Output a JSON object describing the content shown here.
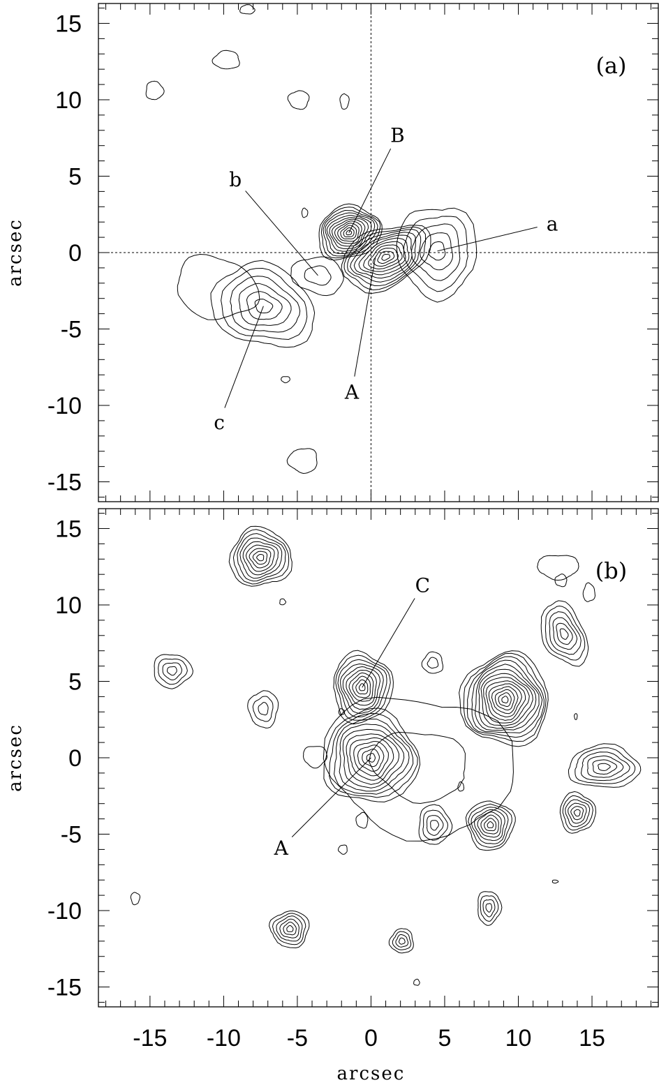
{
  "chart_data": [
    {
      "type": "contour",
      "panel_label": "(a)",
      "xlabel": "",
      "ylabel": "arcsec",
      "xlim": [
        -18.5,
        19.5
      ],
      "ylim": [
        -16.3,
        16.3
      ],
      "x_ticks": [
        -15,
        -10,
        -5,
        0,
        5,
        10,
        15
      ],
      "y_ticks": [
        15,
        10,
        5,
        0,
        -5,
        -10,
        -15
      ],
      "y_tick_labels": [
        "15",
        "10",
        "5",
        "0",
        "-5",
        "-10",
        "-15"
      ],
      "crosshair": {
        "x": 0,
        "y": 0
      },
      "annotations": [
        {
          "text": "A",
          "x": -1.3,
          "y": -9.1,
          "target": [
            0.3,
            -0.3
          ]
        },
        {
          "text": "B",
          "x": 1.8,
          "y": 7.7,
          "target": [
            -1.5,
            1.3
          ]
        },
        {
          "text": "a",
          "x": 12.3,
          "y": 1.9,
          "target": [
            4.5,
            0.1
          ]
        },
        {
          "text": "b",
          "x": -9.2,
          "y": 4.8,
          "target": [
            -3.6,
            -1.5
          ]
        },
        {
          "text": "c",
          "x": -10.3,
          "y": -11.1,
          "target": [
            -7.3,
            -3.5
          ]
        }
      ],
      "sources": [
        {
          "x": -1.5,
          "y": 1.3,
          "rx": 2.2,
          "ry": 1.7,
          "levels": 12,
          "rot": -20
        },
        {
          "x": 1.0,
          "y": -0.3,
          "rx": 3.2,
          "ry": 1.9,
          "levels": 11,
          "rot": -25
        },
        {
          "x": 4.5,
          "y": 0.1,
          "rx": 2.7,
          "ry": 3.0,
          "levels": 5,
          "rot": 0
        },
        {
          "x": -3.6,
          "y": -1.5,
          "rx": 1.8,
          "ry": 1.2,
          "levels": 2,
          "rot": 10
        },
        {
          "x": -7.3,
          "y": -3.5,
          "rx": 3.6,
          "ry": 2.6,
          "levels": 6,
          "rot": 20
        },
        {
          "x": -10.5,
          "y": -2.3,
          "rx": 2.8,
          "ry": 2.0,
          "levels": 1,
          "rot": 15
        },
        {
          "x": -4.9,
          "y": 10.0,
          "rx": 0.7,
          "ry": 0.6,
          "levels": 1,
          "rot": 0
        },
        {
          "x": -9.8,
          "y": 12.6,
          "rx": 0.9,
          "ry": 0.6,
          "levels": 1,
          "rot": 0
        },
        {
          "x": -14.7,
          "y": 10.6,
          "rx": 0.6,
          "ry": 0.6,
          "levels": 1,
          "rot": 0
        },
        {
          "x": -1.8,
          "y": 9.9,
          "rx": 0.3,
          "ry": 0.5,
          "levels": 1,
          "rot": 0
        },
        {
          "x": -4.6,
          "y": -13.6,
          "rx": 1.0,
          "ry": 0.8,
          "levels": 1,
          "rot": 0
        },
        {
          "x": -8.4,
          "y": 15.9,
          "rx": 0.5,
          "ry": 0.3,
          "levels": 1,
          "rot": 0
        },
        {
          "x": -4.5,
          "y": 2.6,
          "rx": 0.2,
          "ry": 0.3,
          "levels": 1,
          "rot": 0
        },
        {
          "x": -5.8,
          "y": -8.3,
          "rx": 0.3,
          "ry": 0.2,
          "levels": 1,
          "rot": 0
        }
      ]
    },
    {
      "type": "contour",
      "panel_label": "(b)",
      "xlabel": "arcsec",
      "ylabel": "arcsec",
      "xlim": [
        -18.5,
        19.5
      ],
      "ylim": [
        -16.3,
        16.3
      ],
      "x_ticks": [
        -15,
        -10,
        -5,
        0,
        5,
        10,
        15
      ],
      "x_tick_labels": [
        "-15",
        "-10",
        "-5",
        "0",
        "5",
        "10",
        "15"
      ],
      "y_ticks": [
        15,
        10,
        5,
        0,
        -5,
        -10,
        -15
      ],
      "y_tick_labels": [
        "15",
        "10",
        "5",
        "0",
        "-5",
        "-10",
        "-15"
      ],
      "annotations": [
        {
          "text": "A",
          "x": -6.1,
          "y": -5.9,
          "target": [
            0.0,
            0.0
          ]
        },
        {
          "text": "C",
          "x": 3.5,
          "y": 11.3,
          "target": [
            -0.6,
            4.6
          ]
        }
      ],
      "sources": [
        {
          "x": 0.0,
          "y": 0.0,
          "rx": 3.2,
          "ry": 3.0,
          "levels": 11,
          "rot": 0
        },
        {
          "x": -0.6,
          "y": 4.6,
          "rx": 2.0,
          "ry": 2.3,
          "levels": 10,
          "rot": 0
        },
        {
          "x": 3.3,
          "y": -0.5,
          "rx": 6.5,
          "ry": 4.5,
          "levels": 2,
          "rot": 10
        },
        {
          "x": 9.1,
          "y": 3.8,
          "rx": 3.0,
          "ry": 3.0,
          "levels": 14,
          "rot": 0
        },
        {
          "x": -7.5,
          "y": 13.1,
          "rx": 2.1,
          "ry": 1.9,
          "levels": 9,
          "rot": 0
        },
        {
          "x": -13.5,
          "y": 5.7,
          "rx": 1.3,
          "ry": 1.1,
          "levels": 4,
          "rot": 0
        },
        {
          "x": -7.3,
          "y": 3.2,
          "rx": 1.0,
          "ry": 1.2,
          "levels": 3,
          "rot": 0
        },
        {
          "x": 4.2,
          "y": 6.2,
          "rx": 0.7,
          "ry": 0.7,
          "levels": 2,
          "rot": 0
        },
        {
          "x": 4.3,
          "y": -4.4,
          "rx": 1.1,
          "ry": 1.3,
          "levels": 4,
          "rot": 0
        },
        {
          "x": 8.1,
          "y": -4.4,
          "rx": 1.6,
          "ry": 1.6,
          "levels": 8,
          "rot": 0
        },
        {
          "x": 13.1,
          "y": 8.1,
          "rx": 1.4,
          "ry": 2.2,
          "levels": 6,
          "rot": -25
        },
        {
          "x": 15.8,
          "y": -0.6,
          "rx": 2.4,
          "ry": 1.4,
          "levels": 6,
          "rot": 0
        },
        {
          "x": 14.0,
          "y": -3.6,
          "rx": 1.2,
          "ry": 1.3,
          "levels": 6,
          "rot": 0
        },
        {
          "x": 12.7,
          "y": 12.5,
          "rx": 1.4,
          "ry": 0.8,
          "levels": 1,
          "rot": 0
        },
        {
          "x": 12.9,
          "y": 11.6,
          "rx": 0.4,
          "ry": 0.4,
          "levels": 1,
          "rot": 0
        },
        {
          "x": 14.8,
          "y": 10.8,
          "rx": 0.4,
          "ry": 0.6,
          "levels": 1,
          "rot": 0
        },
        {
          "x": 8.0,
          "y": -9.8,
          "rx": 0.8,
          "ry": 1.1,
          "levels": 4,
          "rot": 0
        },
        {
          "x": -5.5,
          "y": -11.2,
          "rx": 1.3,
          "ry": 1.2,
          "levels": 6,
          "rot": 0
        },
        {
          "x": 2.1,
          "y": -12.0,
          "rx": 0.8,
          "ry": 0.8,
          "levels": 4,
          "rot": 0
        },
        {
          "x": -6.0,
          "y": 10.2,
          "rx": 0.2,
          "ry": 0.2,
          "levels": 1,
          "rot": 0
        },
        {
          "x": -16.0,
          "y": -9.2,
          "rx": 0.3,
          "ry": 0.4,
          "levels": 1,
          "rot": 0
        },
        {
          "x": -1.9,
          "y": -6.0,
          "rx": 0.3,
          "ry": 0.3,
          "levels": 1,
          "rot": 0
        },
        {
          "x": 3.1,
          "y": -14.7,
          "rx": 0.2,
          "ry": 0.2,
          "levels": 1,
          "rot": 0
        },
        {
          "x": -2.0,
          "y": 3.0,
          "rx": 0.2,
          "ry": 0.2,
          "levels": 1,
          "rot": 0
        },
        {
          "x": -3.8,
          "y": 0.1,
          "rx": 0.8,
          "ry": 0.7,
          "levels": 1,
          "rot": 0
        },
        {
          "x": -0.6,
          "y": -4.1,
          "rx": 0.4,
          "ry": 0.5,
          "levels": 1,
          "rot": 0
        },
        {
          "x": 6.1,
          "y": -1.9,
          "rx": 0.2,
          "ry": 0.3,
          "levels": 1,
          "rot": 0
        },
        {
          "x": 12.5,
          "y": -8.1,
          "rx": 0.2,
          "ry": 0.1,
          "levels": 1,
          "rot": 0
        },
        {
          "x": 13.9,
          "y": 2.7,
          "rx": 0.1,
          "ry": 0.2,
          "levels": 1,
          "rot": 0
        }
      ]
    }
  ]
}
